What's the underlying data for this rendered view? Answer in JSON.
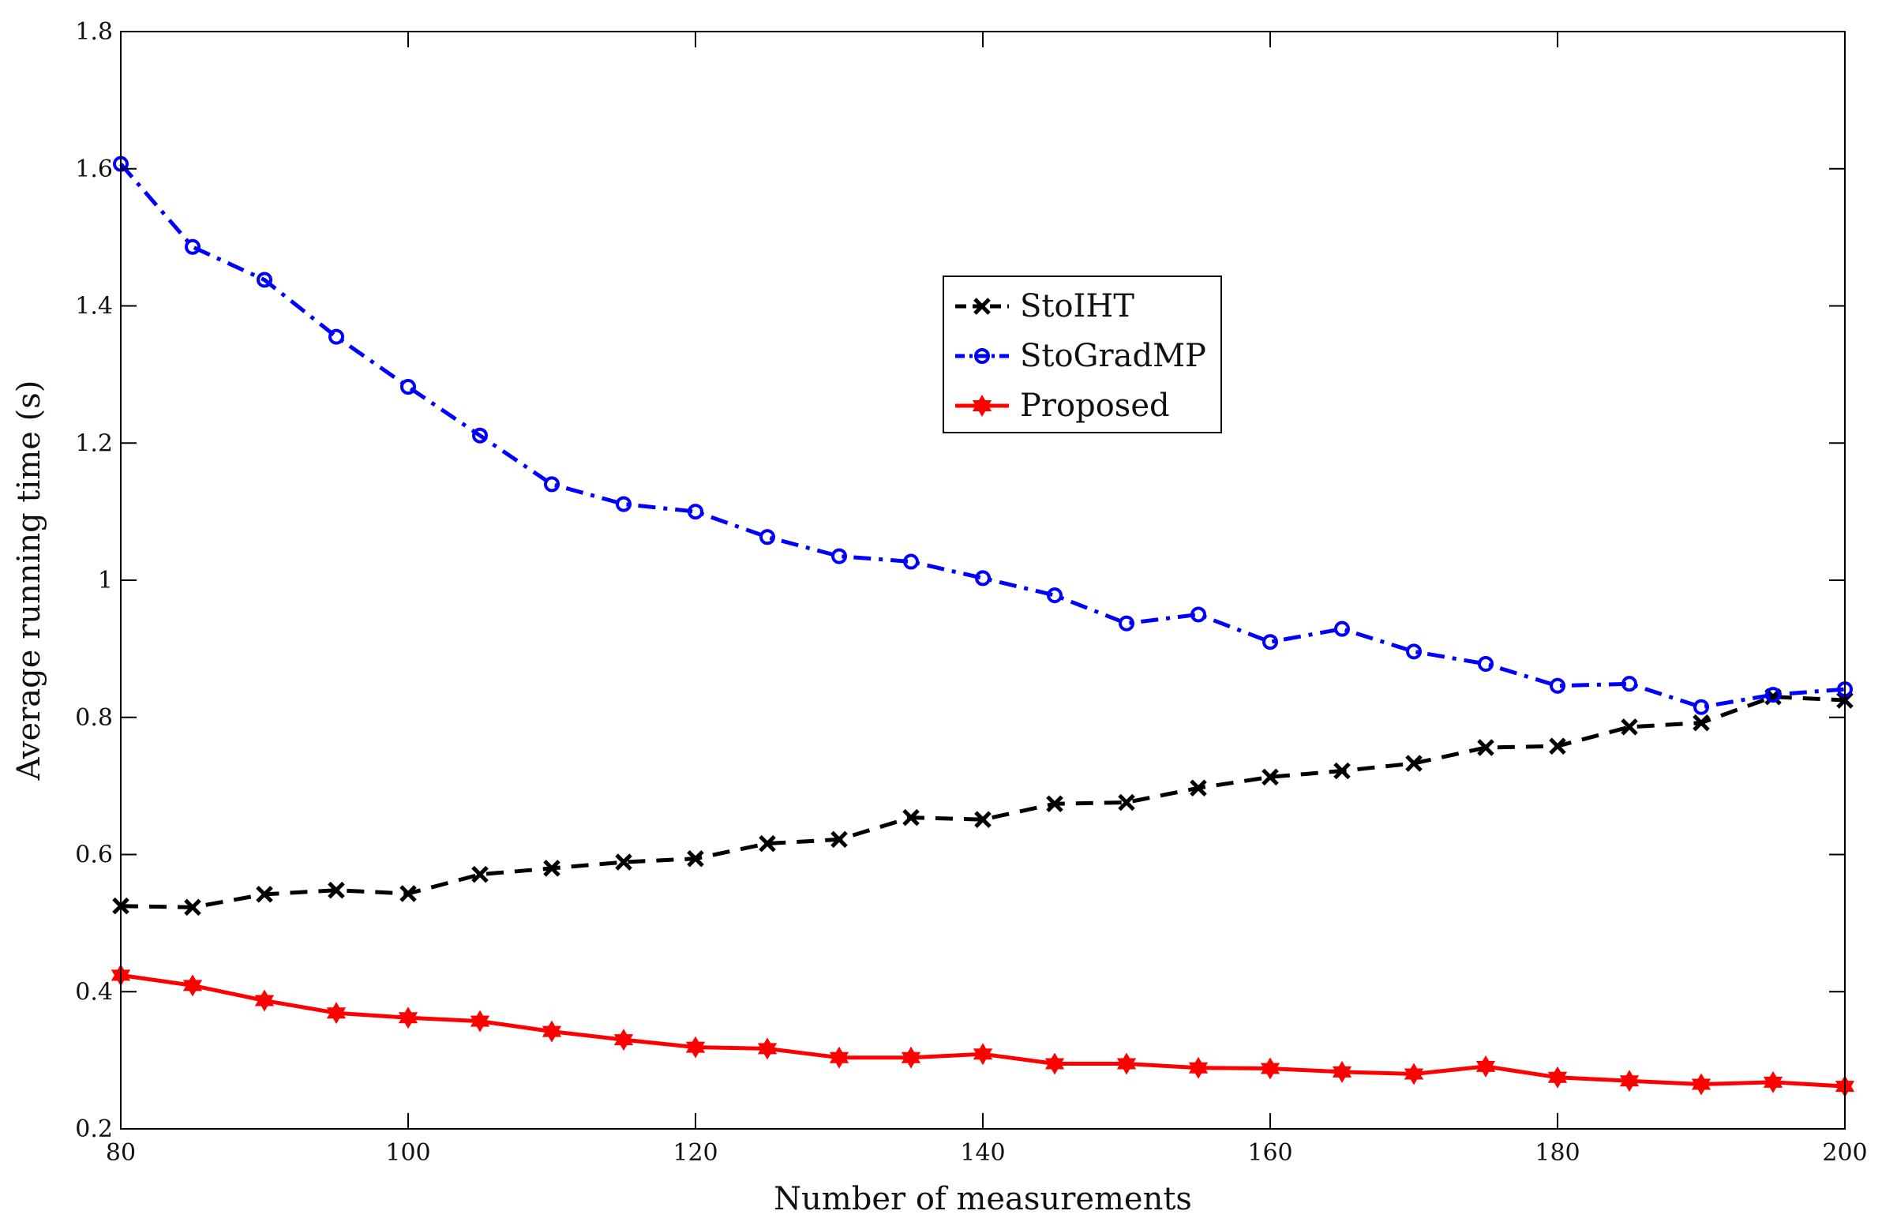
{
  "chart_data": {
    "type": "line",
    "title": "",
    "xlabel": "Number of  measurements",
    "ylabel": "Average running time (s)",
    "xlim": [
      80,
      200
    ],
    "ylim": [
      0.2,
      1.8
    ],
    "xticks": [
      80,
      100,
      120,
      140,
      160,
      180,
      200
    ],
    "yticks": [
      0.2,
      0.4,
      0.6,
      0.8,
      1,
      1.2,
      1.4,
      1.6,
      1.8
    ],
    "xtick_labels": [
      "80",
      "100",
      "120",
      "140",
      "160",
      "180",
      "200"
    ],
    "ytick_labels": [
      "0.2",
      "0.4",
      "0.6",
      "0.8",
      "1",
      "1.2",
      "1.4",
      "1.6",
      "1.8"
    ],
    "grid": false,
    "legend_position": "upper-middle",
    "x": [
      80,
      85,
      90,
      95,
      100,
      105,
      110,
      115,
      120,
      125,
      130,
      135,
      140,
      145,
      150,
      155,
      160,
      165,
      170,
      175,
      180,
      185,
      190,
      195,
      200
    ],
    "series": [
      {
        "name": "StoIHT",
        "color": "#000000",
        "dash": "dashed",
        "marker": "x",
        "values": [
          0.525,
          0.523,
          0.542,
          0.548,
          0.543,
          0.571,
          0.58,
          0.589,
          0.594,
          0.616,
          0.622,
          0.654,
          0.651,
          0.674,
          0.676,
          0.697,
          0.713,
          0.722,
          0.733,
          0.756,
          0.758,
          0.786,
          0.792,
          0.83,
          0.825
        ]
      },
      {
        "name": "StoGradMP",
        "color": "#0000ff",
        "dash": "dashdot",
        "marker": "o",
        "values": [
          1.607,
          1.486,
          1.438,
          1.355,
          1.282,
          1.211,
          1.14,
          1.111,
          1.1,
          1.063,
          1.035,
          1.027,
          1.003,
          0.978,
          0.937,
          0.95,
          0.91,
          0.929,
          0.896,
          0.878,
          0.846,
          0.849,
          0.815,
          0.833,
          0.841
        ]
      },
      {
        "name": "Proposed",
        "color": "#ff0000",
        "dash": "solid",
        "marker": "hexagram",
        "values": [
          0.424,
          0.409,
          0.387,
          0.369,
          0.362,
          0.357,
          0.342,
          0.33,
          0.319,
          0.317,
          0.304,
          0.304,
          0.309,
          0.295,
          0.295,
          0.289,
          0.288,
          0.283,
          0.28,
          0.291,
          0.275,
          0.27,
          0.265,
          0.268,
          0.262
        ]
      }
    ]
  }
}
